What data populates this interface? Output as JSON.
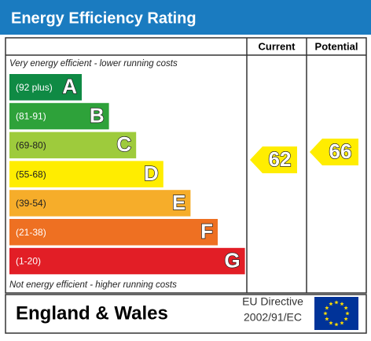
{
  "header": {
    "title": "Energy Efficiency Rating"
  },
  "columns": [
    "Current",
    "Potential"
  ],
  "top_note": "Very energy efficient - lower running costs",
  "bottom_note": "Not energy efficient - higher running costs",
  "bands": [
    {
      "range": "(92 plus)",
      "letter": "A",
      "color": "#0f8a44"
    },
    {
      "range": "(81-91)",
      "letter": "B",
      "color": "#2ea23a"
    },
    {
      "range": "(69-80)",
      "letter": "C",
      "color": "#9ecb3c"
    },
    {
      "range": "(55-68)",
      "letter": "D",
      "color": "#ffed00"
    },
    {
      "range": "(39-54)",
      "letter": "E",
      "color": "#f6ad2a"
    },
    {
      "range": "(21-38)",
      "letter": "F",
      "color": "#ee7022"
    },
    {
      "range": "(1-20)",
      "letter": "G",
      "color": "#e21e26"
    }
  ],
  "current": 62,
  "potential": 66,
  "footer": {
    "region": "England & Wales",
    "directive": [
      "EU Directive",
      "2002/91/EC"
    ]
  }
}
